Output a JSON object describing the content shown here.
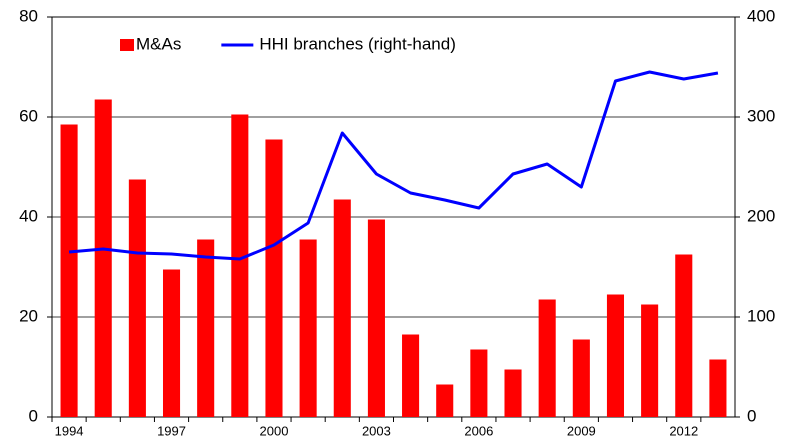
{
  "chart_data": {
    "type": "bar_line",
    "categories": [
      "1994",
      null,
      null,
      "1997",
      null,
      null,
      "2000",
      null,
      null,
      "2003",
      null,
      null,
      "2006",
      null,
      null,
      "2009",
      null,
      null,
      "2012",
      null
    ],
    "series": [
      {
        "name": "M&As",
        "type": "bar",
        "color": "#ff0000",
        "values": [
          58.5,
          63.5,
          47.5,
          29.5,
          35.5,
          60.5,
          55.5,
          35.5,
          43.5,
          39.5,
          16.5,
          6.5,
          13.5,
          9.5,
          23.5,
          15.5,
          24.5,
          22.5,
          32.5,
          11.5
        ]
      },
      {
        "name": "HHI branches (right-hand)",
        "type": "line",
        "axis": "y2",
        "color": "#0000ff",
        "values": [
          165,
          168,
          164,
          163,
          160,
          158,
          172,
          194,
          284,
          243,
          224,
          217,
          209,
          243,
          253,
          230,
          336,
          345,
          338,
          344
        ]
      }
    ],
    "ylim": [
      0,
      80
    ],
    "yticks": [
      0,
      20,
      40,
      60,
      80
    ],
    "y2lim": [
      0,
      400
    ],
    "y2ticks": [
      0,
      100,
      200,
      300,
      400
    ],
    "grid": true,
    "legend": "top-left"
  }
}
